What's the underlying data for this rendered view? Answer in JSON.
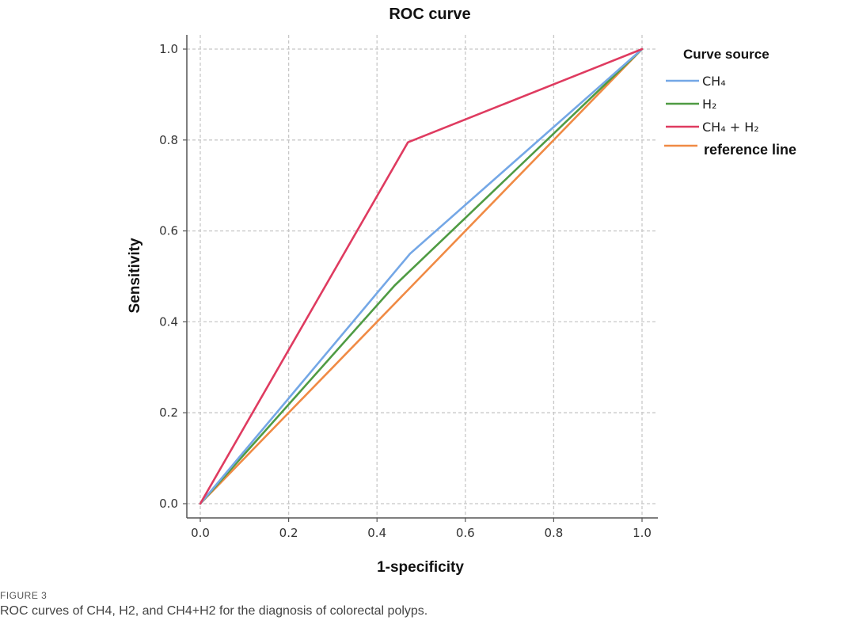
{
  "chart_data": {
    "type": "line",
    "title": "ROC curve",
    "xlabel": "1-specificity",
    "ylabel": "Sensitivity",
    "xlim": [
      0,
      1
    ],
    "ylim": [
      0,
      1
    ],
    "x_ticks": [
      "0.0",
      "0.2",
      "0.4",
      "0.6",
      "0.8",
      "1.0"
    ],
    "y_ticks": [
      "0.0",
      "0.2",
      "0.4",
      "0.6",
      "0.8",
      "1.0"
    ],
    "grid": true,
    "legend_title": "Curve source",
    "legend_position": "right",
    "series": [
      {
        "name": "CH₄",
        "color": "#74a7e6",
        "x": [
          0,
          0.475,
          1
        ],
        "y": [
          0,
          0.55,
          1
        ]
      },
      {
        "name": "H₂",
        "color": "#4f9b43",
        "x": [
          0,
          0.44,
          1
        ],
        "y": [
          0,
          0.48,
          1
        ]
      },
      {
        "name": "CH₄ + H₂",
        "color": "#df3b60",
        "x": [
          0,
          0.47,
          1
        ],
        "y": [
          0,
          0.795,
          1
        ]
      },
      {
        "name": "reference line",
        "color": "#f08a44",
        "x": [
          0,
          1
        ],
        "y": [
          0,
          1
        ]
      }
    ]
  },
  "caption": {
    "label": "FIGURE 3",
    "text": "ROC curves of CH4, H2, and CH4+H2 for the diagnosis of colorectal polyps."
  }
}
